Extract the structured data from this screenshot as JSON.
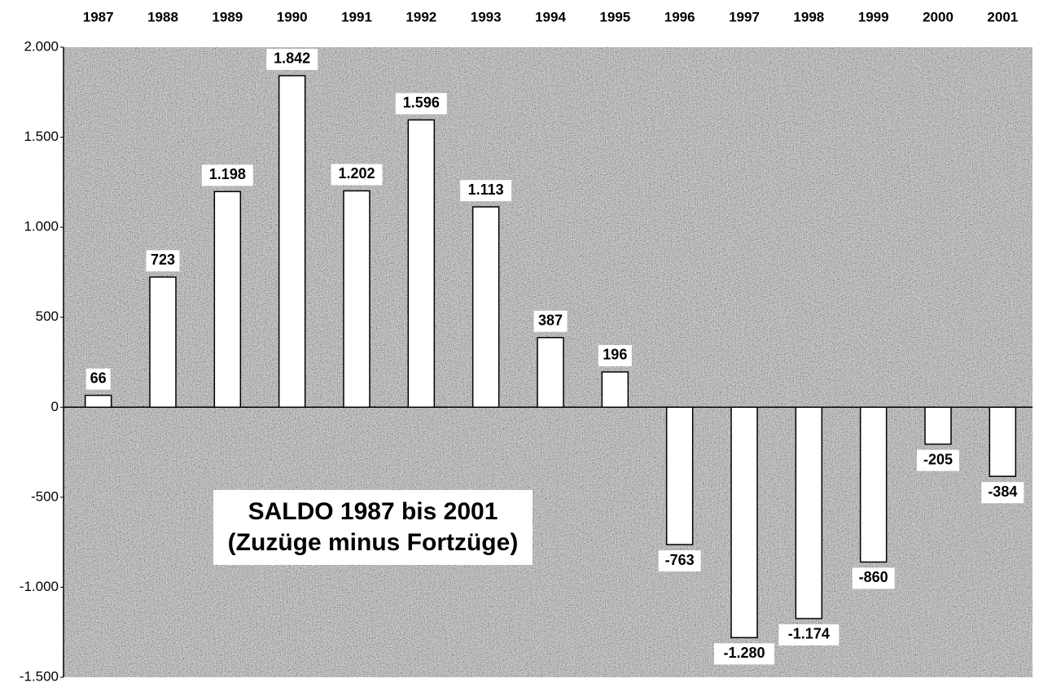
{
  "chart_data": {
    "type": "bar",
    "categories": [
      "1987",
      "1988",
      "1989",
      "1990",
      "1991",
      "1992",
      "1993",
      "1994",
      "1995",
      "1996",
      "1997",
      "1998",
      "1999",
      "2000",
      "2001"
    ],
    "values": [
      66,
      723,
      1198,
      1842,
      1202,
      1596,
      1113,
      387,
      196,
      -763,
      -1280,
      -1174,
      -860,
      -205,
      -384
    ],
    "value_labels": [
      "66",
      "723",
      "1.198",
      "1.842",
      "1.202",
      "1.596",
      "1.113",
      "387",
      "196",
      "-763",
      "-1.280",
      "-1.174",
      "-860",
      "-205",
      "-384"
    ],
    "color": "#ffffff",
    "ylim": [
      -1500,
      2000
    ],
    "yticks": [
      {
        "value": 2000,
        "label": "2.000"
      },
      {
        "value": 1500,
        "label": "1.500"
      },
      {
        "value": 1000,
        "label": "1.000"
      },
      500,
      0,
      -500,
      {
        "value": -1000,
        "label": "-1.000"
      },
      {
        "value": -1500,
        "label": "-1.500"
      }
    ],
    "annotations": [
      "SALDO 1987 bis 2001",
      "(Zuzüge minus Fortzüge)"
    ]
  }
}
